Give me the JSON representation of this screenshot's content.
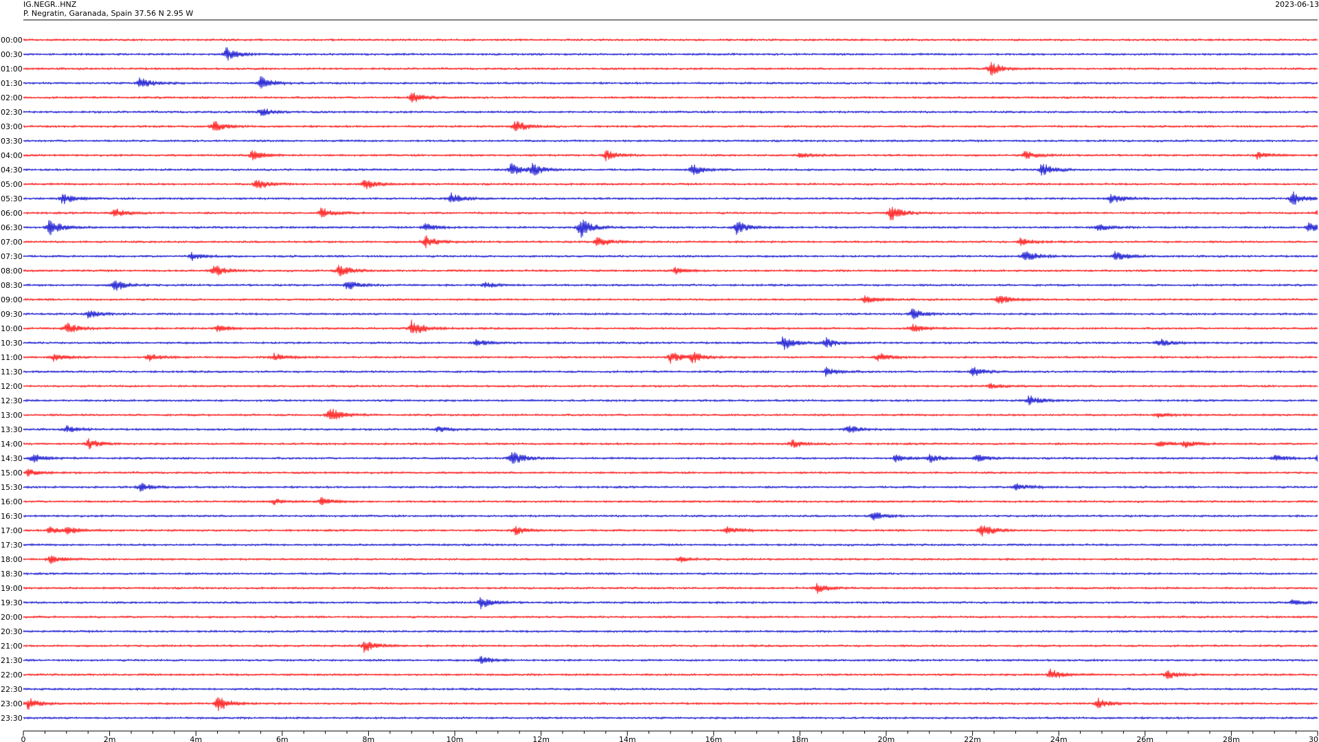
{
  "header": {
    "station_id": "IG.NEGR..HNZ",
    "location": "P. Negratin, Garanada, Spain  37.56 N 2.95 W",
    "date": "2023-06-13"
  },
  "colors": {
    "even_rows": "#ff0000",
    "odd_rows": "#0000cc",
    "axis": "#000000"
  },
  "chart_data": {
    "type": "line",
    "title": "IG.NEGR..HNZ",
    "subtitle": "P. Negratin, Garanada, Spain  37.56 N 2.95 W",
    "xlabel": "",
    "ylabel": "",
    "xlim": [
      0,
      30
    ],
    "x_unit": "minutes",
    "grid": false,
    "row_labels": [
      "00:00",
      "00:30",
      "01:00",
      "01:30",
      "02:00",
      "02:30",
      "03:00",
      "03:30",
      "04:00",
      "04:30",
      "05:00",
      "05:30",
      "06:00",
      "06:30",
      "07:00",
      "07:30",
      "08:00",
      "08:30",
      "09:00",
      "09:30",
      "10:00",
      "10:30",
      "11:00",
      "11:30",
      "12:00",
      "12:30",
      "13:00",
      "13:30",
      "14:00",
      "14:30",
      "15:00",
      "15:30",
      "16:00",
      "16:30",
      "17:00",
      "17:30",
      "18:00",
      "18:30",
      "19:00",
      "19:30",
      "20:00",
      "20:30",
      "21:00",
      "21:30",
      "22:00",
      "22:30",
      "23:00",
      "23:30"
    ],
    "x_ticks": [
      "0",
      "2m",
      "4m",
      "6m",
      "8m",
      "10m",
      "12m",
      "14m",
      "16m",
      "18m",
      "20m",
      "22m",
      "24m",
      "26m",
      "28m",
      "30"
    ],
    "events": [
      [],
      [
        [
          4.7,
          1.0
        ]
      ],
      [
        [
          22.4,
          1.0
        ]
      ],
      [
        [
          2.7,
          0.9
        ],
        [
          5.5,
          0.9
        ]
      ],
      [
        [
          9.0,
          0.8
        ]
      ],
      [
        [
          5.5,
          0.6
        ]
      ],
      [
        [
          4.4,
          0.8
        ],
        [
          11.4,
          0.9
        ]
      ],
      [],
      [
        [
          5.3,
          0.8
        ],
        [
          13.5,
          0.7
        ],
        [
          18.0,
          0.4
        ],
        [
          23.2,
          0.6
        ],
        [
          28.6,
          0.5
        ]
      ],
      [
        [
          11.3,
          0.9
        ],
        [
          11.8,
          0.8
        ],
        [
          15.5,
          0.8
        ],
        [
          23.6,
          1.0
        ]
      ],
      [
        [
          5.4,
          0.8
        ],
        [
          7.9,
          0.8
        ]
      ],
      [
        [
          0.9,
          0.8
        ],
        [
          9.9,
          0.8
        ],
        [
          25.2,
          0.8
        ],
        [
          29.4,
          1.0
        ]
      ],
      [
        [
          2.1,
          0.7
        ],
        [
          6.9,
          0.7
        ],
        [
          20.1,
          1.1
        ],
        [
          30.0,
          0.6
        ]
      ],
      [
        [
          0.6,
          1.2
        ],
        [
          9.3,
          0.6
        ],
        [
          12.9,
          1.4
        ],
        [
          16.5,
          1.0
        ],
        [
          24.9,
          0.5
        ],
        [
          29.8,
          0.8
        ]
      ],
      [
        [
          9.3,
          0.9
        ],
        [
          13.3,
          0.8
        ],
        [
          23.1,
          0.5
        ]
      ],
      [
        [
          3.9,
          0.5
        ],
        [
          23.2,
          1.0
        ],
        [
          25.3,
          0.7
        ]
      ],
      [
        [
          4.4,
          0.9
        ],
        [
          7.3,
          0.9
        ],
        [
          15.1,
          0.5
        ]
      ],
      [
        [
          2.1,
          0.9
        ],
        [
          7.5,
          0.7
        ],
        [
          10.7,
          0.4
        ]
      ],
      [
        [
          19.5,
          0.6
        ],
        [
          22.6,
          0.7
        ]
      ],
      [
        [
          1.5,
          0.6
        ],
        [
          20.6,
          0.8
        ]
      ],
      [
        [
          1.0,
          0.8
        ],
        [
          9.0,
          1.2
        ],
        [
          4.5,
          0.6
        ],
        [
          20.6,
          0.6
        ]
      ],
      [
        [
          10.5,
          0.5
        ],
        [
          17.6,
          1.0
        ],
        [
          18.6,
          0.7
        ],
        [
          26.3,
          0.6
        ]
      ],
      [
        [
          0.7,
          0.5
        ],
        [
          2.9,
          0.6
        ],
        [
          5.8,
          0.6
        ],
        [
          15.0,
          0.8
        ],
        [
          15.5,
          0.8
        ],
        [
          19.8,
          0.6
        ]
      ],
      [
        [
          18.6,
          0.6
        ],
        [
          22.0,
          0.7
        ]
      ],
      [
        [
          22.4,
          0.4
        ]
      ],
      [
        [
          23.3,
          0.7
        ]
      ],
      [
        [
          7.1,
          1.1
        ],
        [
          26.3,
          0.4
        ]
      ],
      [
        [
          1.0,
          0.5
        ],
        [
          9.6,
          0.4
        ],
        [
          19.1,
          0.7
        ]
      ],
      [
        [
          1.5,
          0.7
        ],
        [
          17.8,
          0.6
        ],
        [
          26.3,
          0.5
        ],
        [
          26.9,
          0.5
        ]
      ],
      [
        [
          0.2,
          0.6
        ],
        [
          11.3,
          1.1
        ],
        [
          20.2,
          0.5
        ],
        [
          21.0,
          0.6
        ],
        [
          22.1,
          0.5
        ],
        [
          29.0,
          0.5
        ],
        [
          30.0,
          0.5
        ]
      ],
      [
        [
          0.1,
          0.5
        ]
      ],
      [
        [
          2.7,
          0.6
        ],
        [
          23.0,
          0.6
        ]
      ],
      [
        [
          5.8,
          0.4
        ],
        [
          6.9,
          0.5
        ]
      ],
      [
        [
          19.7,
          0.6
        ]
      ],
      [
        [
          0.6,
          0.5
        ],
        [
          1.0,
          0.6
        ],
        [
          11.4,
          0.6
        ],
        [
          16.3,
          0.6
        ],
        [
          22.2,
          1.0
        ]
      ],
      [],
      [
        [
          0.6,
          0.6
        ],
        [
          15.2,
          0.4
        ]
      ],
      [],
      [
        [
          18.4,
          0.7
        ]
      ],
      [
        [
          10.6,
          0.8
        ],
        [
          29.4,
          0.5
        ]
      ],
      [],
      [],
      [
        [
          7.9,
          0.9
        ]
      ],
      [
        [
          10.6,
          0.6
        ]
      ],
      [
        [
          23.8,
          0.8
        ],
        [
          26.5,
          0.6
        ]
      ],
      [],
      [
        [
          0.1,
          0.8
        ],
        [
          4.5,
          1.2
        ],
        [
          24.9,
          0.7
        ]
      ],
      []
    ]
  }
}
